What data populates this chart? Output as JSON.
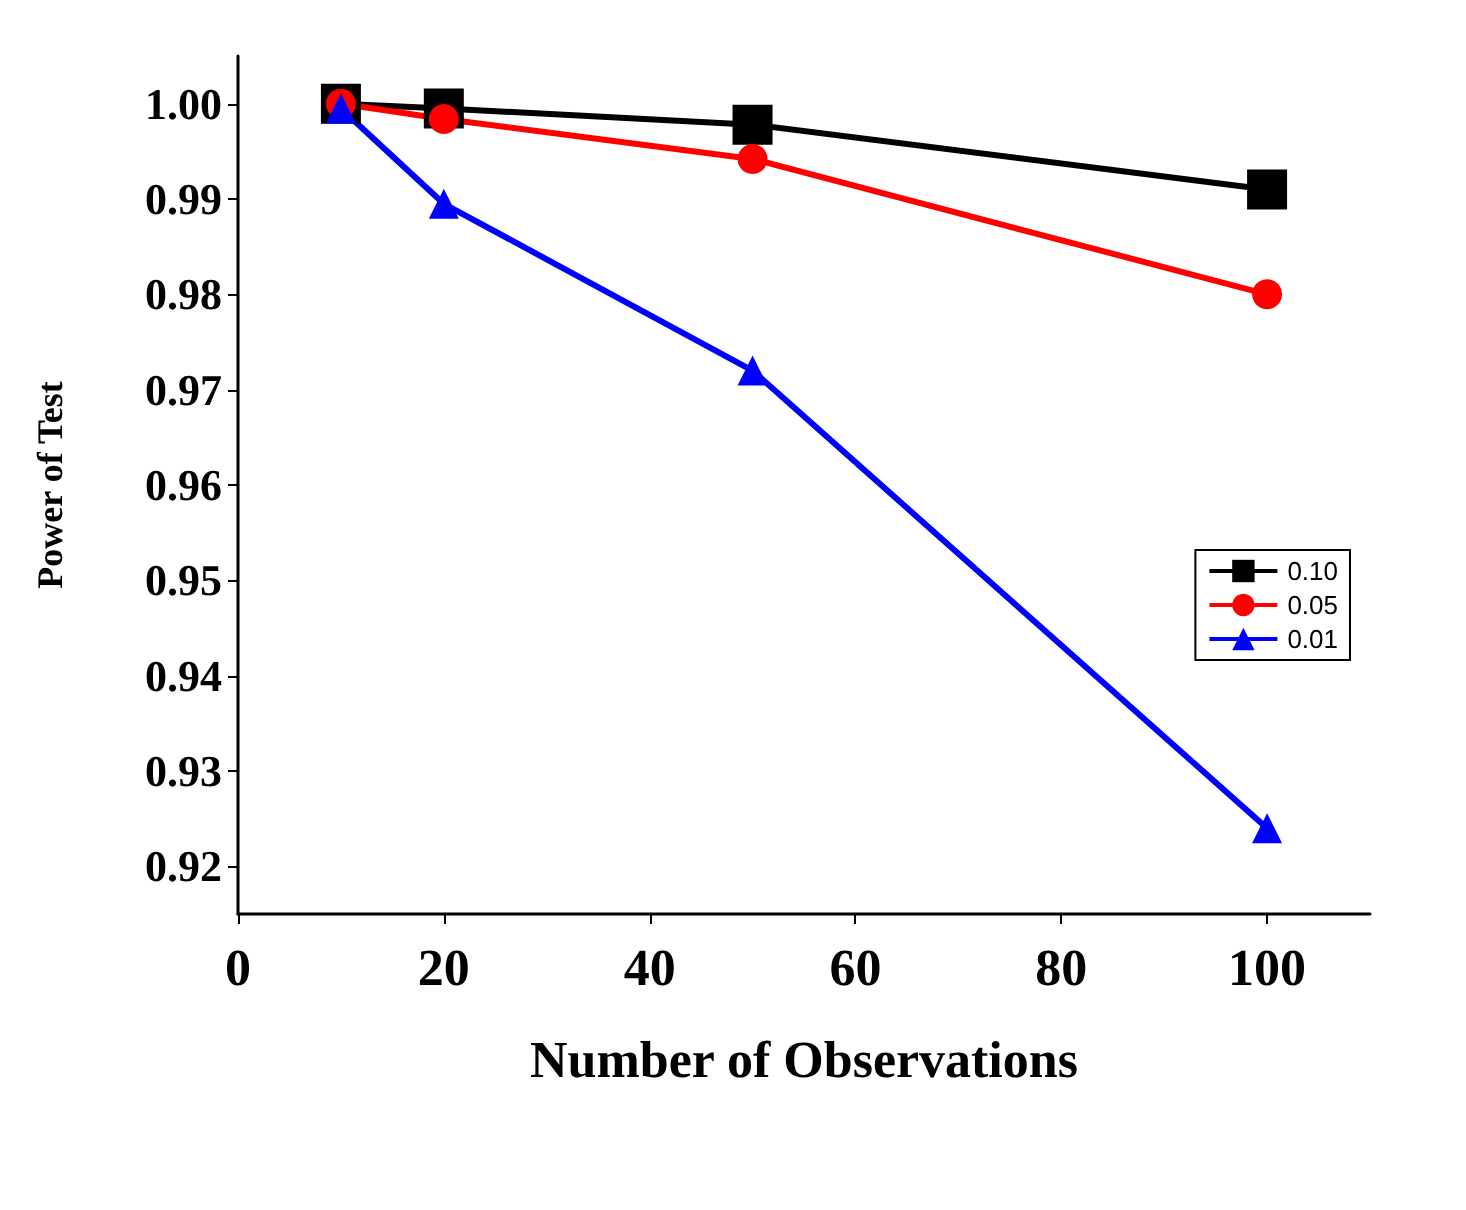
{
  "chart_data": {
    "type": "line",
    "xlabel": "Number of Observations",
    "ylabel": "Power of Test",
    "x": [
      10,
      20,
      50,
      100
    ],
    "series": [
      {
        "name": "0.10",
        "color": "#000000",
        "marker": "square",
        "values": [
          1.0,
          0.9995,
          0.9978,
          0.991
        ]
      },
      {
        "name": "0.05",
        "color": "#ff0000",
        "marker": "circle",
        "values": [
          1.0,
          0.9984,
          0.9942,
          0.98
        ]
      },
      {
        "name": "0.01",
        "color": "#0000ff",
        "marker": "triangle",
        "values": [
          0.9995,
          0.9895,
          0.972,
          0.924
        ]
      }
    ],
    "xlim": [
      0,
      110
    ],
    "xticks": [
      0,
      20,
      40,
      60,
      80,
      100
    ],
    "ylim": [
      0.915,
      1.005
    ],
    "yticks": [
      {
        "value": 0.92,
        "label": "0.92"
      },
      {
        "value": 0.93,
        "label": "0.93"
      },
      {
        "value": 0.94,
        "label": "0.94"
      },
      {
        "value": 0.95,
        "label": "0.95"
      },
      {
        "value": 0.96,
        "label": "0.96"
      },
      {
        "value": 0.97,
        "label": "0.97"
      },
      {
        "value": 0.98,
        "label": "0.98"
      },
      {
        "value": 0.99,
        "label": "0.99"
      },
      {
        "value": 1.0,
        "label": "1.00"
      }
    ],
    "grid": false,
    "legend": "right",
    "line_style": "solid"
  }
}
